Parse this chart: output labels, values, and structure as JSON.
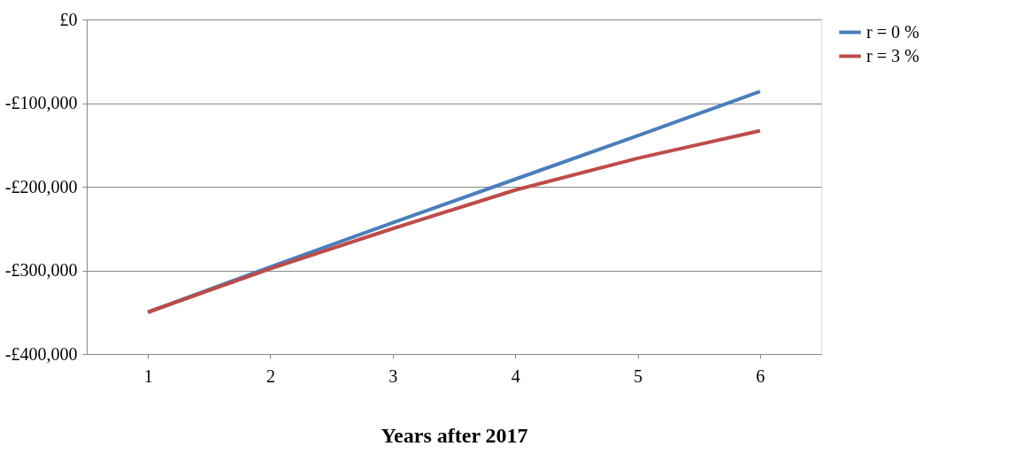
{
  "chart_data": {
    "type": "line",
    "xlabel": "Years after 2017",
    "categories": [
      "1",
      "2",
      "3",
      "4",
      "5",
      "6"
    ],
    "series": [
      {
        "name": "r = 0 %",
        "color": "#4a7ebb",
        "values": [
          -350000,
          -296000,
          -243000,
          -191000,
          -139000,
          -86000
        ]
      },
      {
        "name": "r = 3 %",
        "color": "#be4b48",
        "values": [
          -350000,
          -298000,
          -250000,
          -204000,
          -166000,
          -133000
        ]
      }
    ],
    "ylim": [
      -400000,
      0
    ],
    "yticks": [
      {
        "value": -400000,
        "label": "-£400,000"
      },
      {
        "value": -300000,
        "label": "-£300,000"
      },
      {
        "value": -200000,
        "label": "-£200,000"
      },
      {
        "value": -100000,
        "label": "-£100,000"
      },
      {
        "value": 0,
        "label": "£0"
      }
    ],
    "grid": "y",
    "legend": "right",
    "marker": "none",
    "line_style": "solid"
  }
}
